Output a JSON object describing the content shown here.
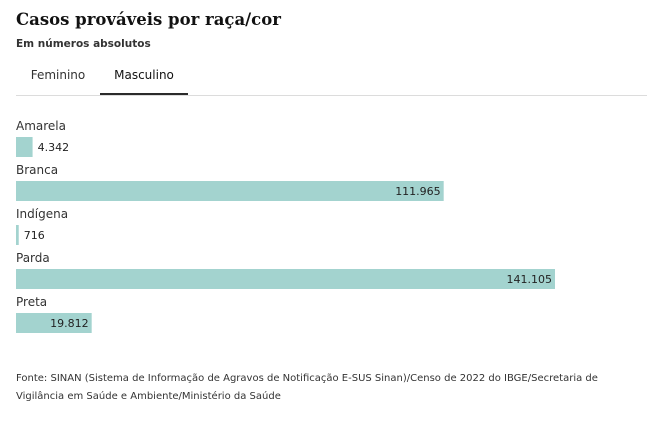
{
  "header": {
    "title": "Casos prováveis por raça/cor",
    "subtitle": "Em números absolutos"
  },
  "tabs": [
    {
      "label": "Feminino",
      "active": false
    },
    {
      "label": "Masculino",
      "active": true
    }
  ],
  "colors": {
    "bar": "#a3d3cf",
    "text": "#222222",
    "tab_underline": "#2b2b2b"
  },
  "chart_data": {
    "type": "bar",
    "orientation": "horizontal",
    "categories": [
      "Amarela",
      "Branca",
      "Indígena",
      "Parda",
      "Preta"
    ],
    "values": [
      4342,
      111965,
      716,
      141105,
      19812
    ],
    "value_labels": [
      "4.342",
      "111.965",
      "716",
      "141.105",
      "19.812"
    ],
    "title": "Casos prováveis por raça/cor",
    "subtitle": "Em números absolutos",
    "xlim": [
      0,
      141105
    ],
    "grid": false,
    "legend": "none"
  },
  "source": "Fonte: SINAN (Sistema de Informação de Agravos de Notificação E-SUS Sinan)/Censo de 2022 do IBGE/Secretaria de Vigilância em Saúde e Ambiente/Ministério da Saúde"
}
